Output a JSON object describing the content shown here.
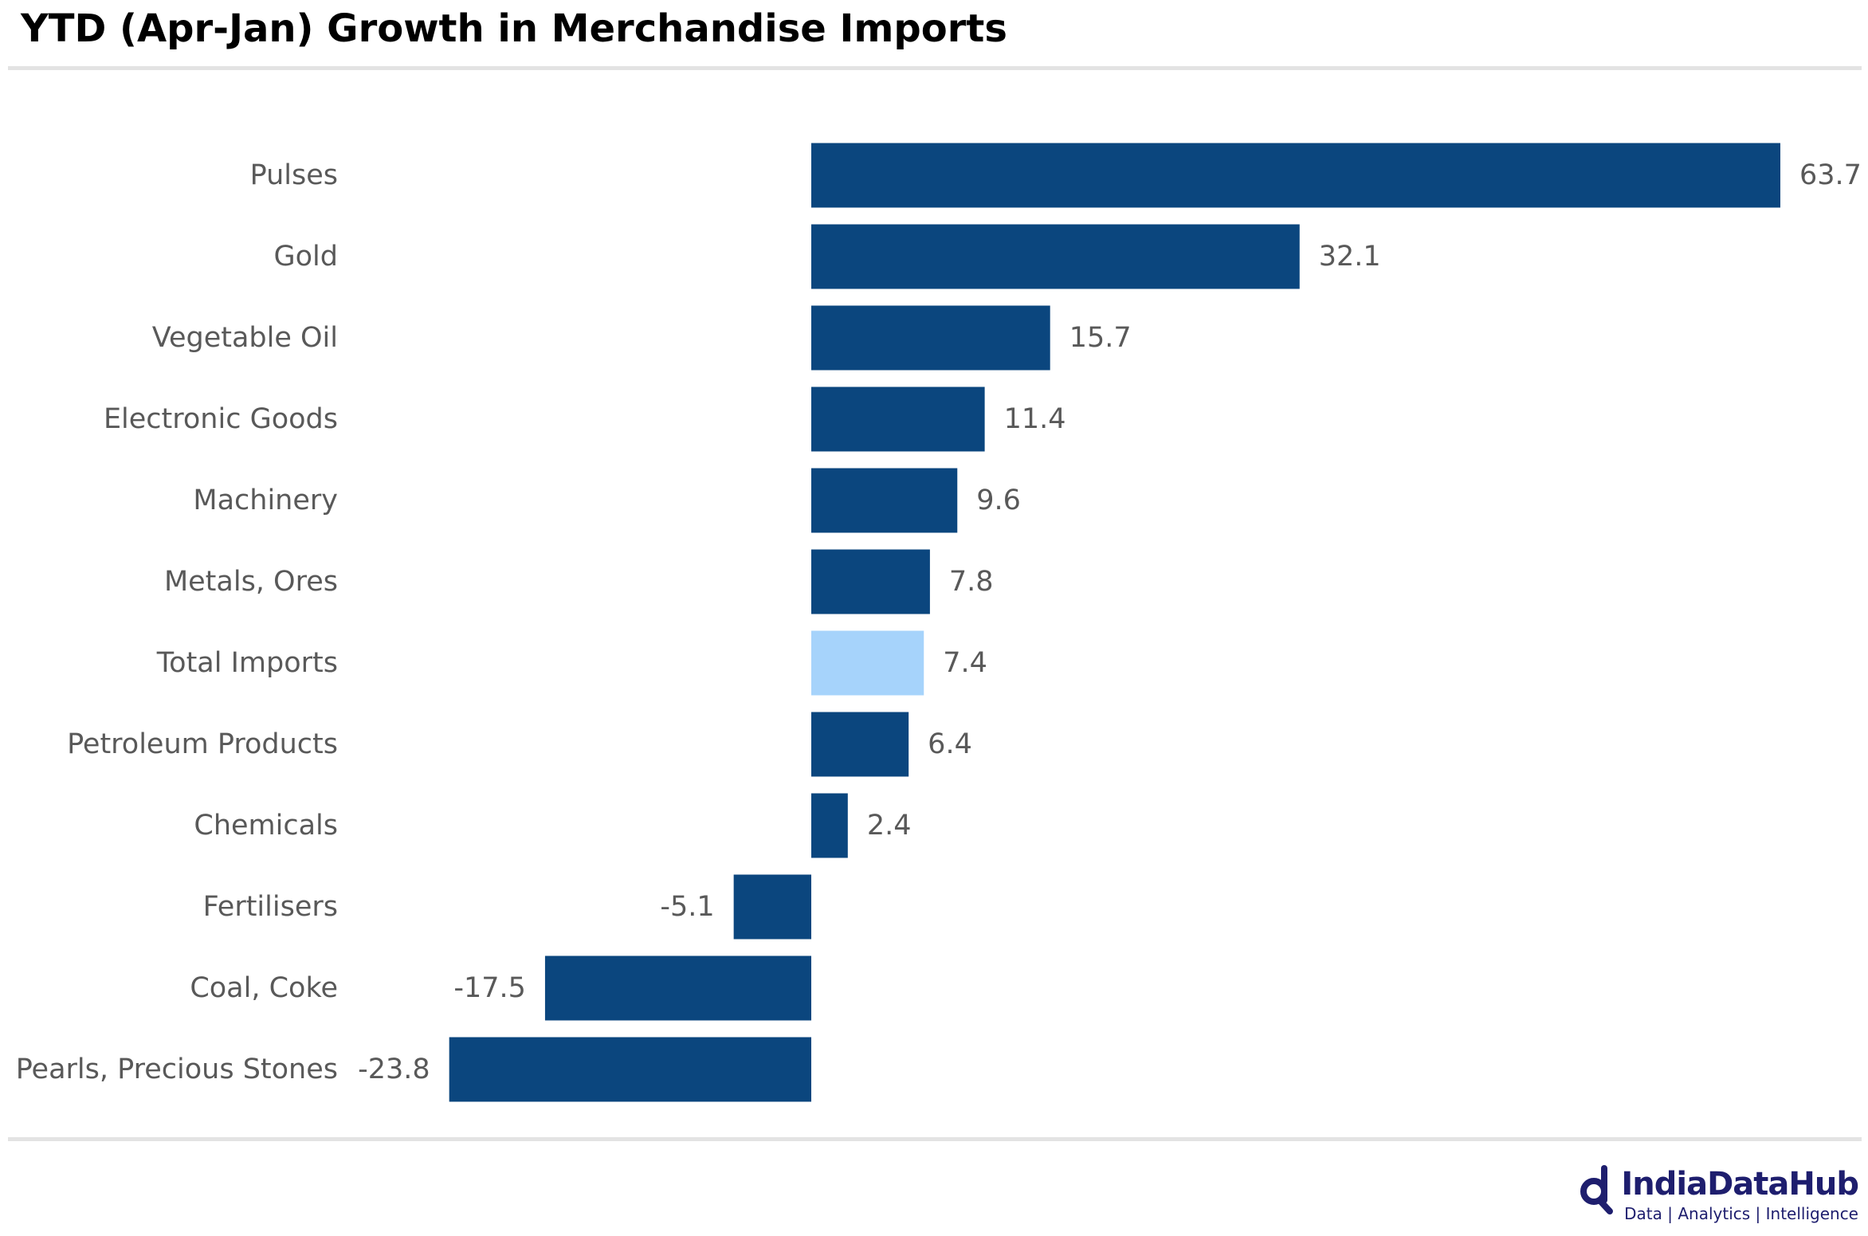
{
  "title": "YTD (Apr-Jan) Growth in Merchandise Imports",
  "colors": {
    "bar": "#0b467e",
    "highlight": "#a6d3fb",
    "label": "#595959",
    "rule": "#e3e3e3",
    "brand": "#1e1e6e"
  },
  "chart_data": {
    "type": "bar",
    "orientation": "horizontal",
    "categories": [
      "Pulses",
      "Gold",
      "Vegetable Oil",
      "Electronic Goods",
      "Machinery",
      "Metals, Ores",
      "Total Imports",
      "Petroleum Products",
      "Chemicals",
      "Fertilisers",
      "Coal, Coke",
      "Pearls, Precious Stones"
    ],
    "values": [
      63.7,
      32.1,
      15.7,
      11.4,
      9.6,
      7.8,
      7.4,
      6.4,
      2.4,
      -5.1,
      -17.5,
      -23.8
    ],
    "value_labels": [
      "63.7",
      "32.1",
      "15.7",
      "11.4",
      "9.6",
      "7.8",
      "7.4",
      "6.4",
      "2.4",
      "-5.1",
      "-17.5",
      "-23.8"
    ],
    "highlight_category": "Total Imports",
    "title": "YTD (Apr-Jan) Growth in Merchandise Imports",
    "xlabel": "",
    "ylabel": "",
    "xlim": [
      -23.8,
      63.7
    ],
    "grid": false,
    "legend": "none"
  },
  "logo": {
    "icon": "magnifier-d-icon",
    "name": "IndiaDataHub",
    "tagline": "Data | Analytics | Intelligence"
  }
}
